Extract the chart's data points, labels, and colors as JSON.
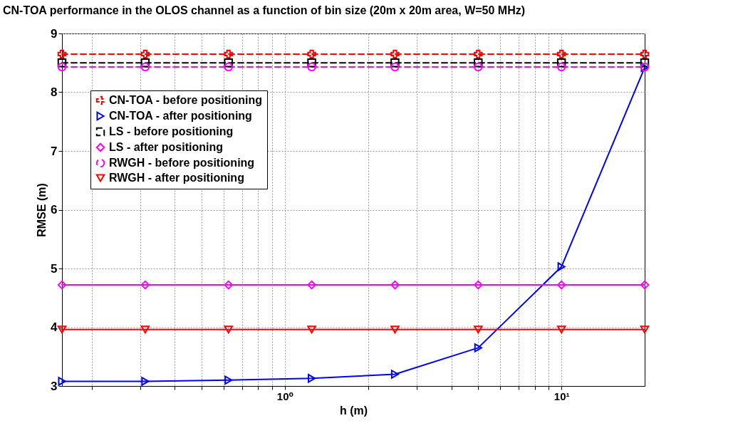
{
  "chart_data": {
    "type": "line",
    "title": "CN-TOA performance in the OLOS channel as a function of bin size (20m x 20m area, W=50 MHz)",
    "xlabel": "h (m)",
    "ylabel": "RMSE (m)",
    "log": "x",
    "x": [
      0.15625,
      0.3125,
      0.625,
      1.25,
      2.5,
      5,
      10,
      20
    ],
    "xlim": [
      0.15625,
      20
    ],
    "xticks": [
      {
        "value": 0.2,
        "label": null
      },
      {
        "value": 0.3,
        "label": null
      },
      {
        "value": 0.4,
        "label": null
      },
      {
        "value": 0.5,
        "label": null
      },
      {
        "value": 0.6,
        "label": null
      },
      {
        "value": 0.7,
        "label": null
      },
      {
        "value": 0.8,
        "label": null
      },
      {
        "value": 0.9,
        "label": null
      },
      {
        "value": 1,
        "label": "10⁰"
      },
      {
        "value": 2,
        "label": null
      },
      {
        "value": 3,
        "label": null
      },
      {
        "value": 4,
        "label": null
      },
      {
        "value": 5,
        "label": null
      },
      {
        "value": 6,
        "label": null
      },
      {
        "value": 7,
        "label": null
      },
      {
        "value": 8,
        "label": null
      },
      {
        "value": 9,
        "label": null
      },
      {
        "value": 10,
        "label": "10¹"
      }
    ],
    "ylim": [
      3,
      9
    ],
    "yticks": [
      3,
      4,
      5,
      6,
      7,
      8,
      9
    ],
    "grid": true,
    "legend": "top left",
    "series": [
      {
        "name": "CN-TOA - before positioning",
        "color": "#ff0000",
        "marker": "cross",
        "line_style": "dashed",
        "values": [
          8.65,
          8.65,
          8.65,
          8.65,
          8.65,
          8.65,
          8.65,
          8.65
        ]
      },
      {
        "name": "CN-TOA - after positioning",
        "color": "#0000ff",
        "marker": "triangle-right",
        "line_style": "solid",
        "values": [
          3.08,
          3.08,
          3.1,
          3.13,
          3.2,
          3.65,
          5.03,
          8.42
        ]
      },
      {
        "name": "LS - before positioning",
        "color": "#000000",
        "marker": "square",
        "line_style": "dashed",
        "values": [
          8.5,
          8.5,
          8.5,
          8.5,
          8.5,
          8.5,
          8.5,
          8.5
        ]
      },
      {
        "name": "LS - after positioning",
        "color": "#ff00ff",
        "marker": "diamond",
        "line_style": "solid",
        "values": [
          4.72,
          4.72,
          4.72,
          4.72,
          4.72,
          4.72,
          4.72,
          4.72
        ]
      },
      {
        "name": "RWGH - before positioning",
        "color": "#ff00ff",
        "marker": "circle",
        "line_style": "dashed",
        "values": [
          8.43,
          8.43,
          8.43,
          8.43,
          8.43,
          8.43,
          8.43,
          8.43
        ]
      },
      {
        "name": "RWGH - after positioning",
        "color": "#ff0000",
        "marker": "triangle-down",
        "line_style": "solid",
        "values": [
          3.96,
          3.96,
          3.96,
          3.96,
          3.96,
          3.96,
          3.96,
          3.96
        ]
      }
    ]
  }
}
